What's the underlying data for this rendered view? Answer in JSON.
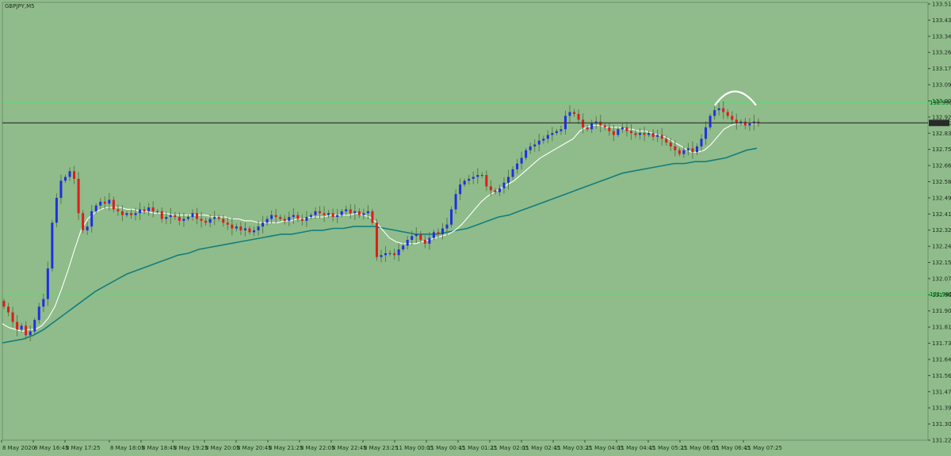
{
  "chart_data": {
    "type": "candlestick",
    "symbol_label": "GBPJPY,M5",
    "colors": {
      "background": "#8fbc8a",
      "bull_candle": "#1f2ee6",
      "bear_candle": "#e01b1b",
      "wick": "#5a7a4a",
      "fast_ma": "#ffffff",
      "slow_ma": "#137e7e",
      "level_line": "#6ecf7a",
      "current_price_line": "#3a3a3a",
      "annotation_arc": "#ffffff"
    },
    "y_axis": {
      "range": [
        131.22,
        133.515
      ],
      "ticks": [
        "133.515",
        "133.430",
        "133.345",
        "133.260",
        "133.175",
        "133.090",
        "133.005",
        "132.920",
        "132.835",
        "132.750",
        "132.665",
        "132.580",
        "132.495",
        "132.410",
        "132.325",
        "132.240",
        "132.155",
        "132.070",
        "131.985",
        "131.900",
        "131.815",
        "131.730",
        "131.645",
        "131.560",
        "131.475",
        "131.390",
        "131.305",
        "131.220"
      ],
      "level_labels": [
        "132.990",
        "131.985"
      ],
      "current_price_label": "132.883"
    },
    "x_axis": {
      "ticks": [
        "8 May 2020",
        "8 May 16:45",
        "8 May 17:25",
        "8 May 18:05",
        "8 May 18:45",
        "8 May 19:25",
        "8 May 20:05",
        "8 May 20:45",
        "8 May 21:25",
        "8 May 22:05",
        "8 May 22:45",
        "8 May 23:25",
        "11 May 00:05",
        "11 May 00:45",
        "11 May 01:25",
        "11 May 02:05",
        "11 May 02:45",
        "11 May 03:25",
        "11 May 04:05",
        "11 May 04:45",
        "11 May 05:25",
        "11 May 06:05",
        "11 May 06:45",
        "11 May 07:25"
      ]
    },
    "levels": [
      132.99,
      131.985
    ],
    "current_price": 132.883,
    "closes": [
      131.92,
      131.89,
      131.84,
      131.8,
      131.82,
      131.77,
      131.79,
      131.85,
      131.92,
      131.96,
      132.12,
      132.36,
      132.49,
      132.58,
      132.6,
      132.63,
      132.59,
      132.41,
      132.32,
      132.34,
      132.42,
      132.45,
      132.47,
      132.46,
      132.48,
      132.43,
      132.42,
      132.4,
      132.41,
      132.4,
      132.41,
      132.43,
      132.42,
      132.44,
      132.42,
      132.42,
      132.38,
      132.39,
      132.4,
      132.39,
      132.37,
      132.38,
      132.39,
      132.41,
      132.38,
      132.37,
      132.36,
      132.38,
      132.39,
      132.38,
      132.36,
      132.35,
      132.33,
      132.34,
      132.32,
      132.33,
      132.31,
      132.32,
      132.34,
      132.36,
      132.38,
      132.4,
      132.39,
      132.38,
      132.37,
      132.39,
      132.4,
      132.38,
      132.37,
      132.39,
      132.4,
      132.42,
      132.41,
      132.4,
      132.41,
      132.39,
      132.4,
      132.42,
      132.43,
      132.41,
      132.42,
      132.4,
      132.41,
      132.42,
      132.36,
      132.18,
      132.19,
      132.2,
      132.2,
      132.19,
      132.22,
      132.24,
      132.27,
      132.29,
      132.3,
      132.27,
      132.25,
      132.28,
      132.31,
      132.3,
      132.33,
      132.35,
      132.43,
      132.51,
      132.56,
      132.58,
      132.59,
      132.6,
      132.61,
      132.61,
      132.55,
      132.53,
      132.52,
      132.54,
      132.57,
      132.6,
      132.64,
      132.67,
      132.7,
      132.74,
      132.76,
      132.77,
      132.79,
      132.8,
      132.82,
      132.83,
      132.84,
      132.85,
      132.92,
      132.94,
      132.93,
      132.9,
      132.86,
      132.85,
      132.88,
      132.89,
      132.87,
      132.86,
      132.84,
      132.82,
      132.85,
      132.86,
      132.84,
      132.83,
      132.82,
      132.83,
      132.82,
      132.83,
      132.81,
      132.82,
      132.8,
      132.78,
      132.76,
      132.74,
      132.72,
      132.74,
      132.75,
      132.73,
      132.76,
      132.8,
      132.86,
      132.92,
      132.95,
      132.96,
      132.94,
      132.92,
      132.9,
      132.88,
      132.89,
      132.87,
      132.88,
      132.89,
      132.88
    ],
    "fast_ma": [
      131.83,
      131.81,
      131.8,
      131.79,
      131.8,
      131.8,
      131.82,
      131.86,
      131.92,
      132.01,
      132.11,
      132.22,
      132.32,
      132.38,
      132.41,
      132.43,
      132.44,
      132.44,
      132.44,
      132.43,
      132.43,
      132.42,
      132.42,
      132.41,
      132.41,
      132.41,
      132.4,
      132.4,
      132.4,
      132.4,
      132.4,
      132.4,
      132.39,
      132.39,
      132.39,
      132.38,
      132.38,
      132.37,
      132.37,
      132.36,
      132.36,
      132.36,
      132.36,
      132.37,
      132.37,
      132.38,
      132.38,
      132.39,
      132.39,
      132.39,
      132.4,
      132.4,
      132.4,
      132.4,
      132.41,
      132.4,
      132.39,
      132.36,
      132.32,
      132.28,
      132.26,
      132.25,
      132.25,
      132.25,
      132.26,
      132.27,
      132.28,
      132.29,
      132.3,
      132.32,
      132.35,
      132.39,
      132.43,
      132.47,
      132.5,
      132.52,
      132.54,
      132.56,
      132.58,
      132.61,
      132.64,
      132.67,
      132.7,
      132.72,
      132.74,
      132.76,
      132.78,
      132.8,
      132.84,
      132.86,
      132.87,
      132.87,
      132.86,
      132.86,
      132.86,
      132.85,
      132.85,
      132.84,
      132.84,
      132.83,
      132.82,
      132.81,
      132.79,
      132.77,
      132.75,
      132.73,
      132.73,
      132.74,
      132.77,
      132.81,
      132.85,
      132.87,
      132.88,
      132.88,
      132.88,
      132.88
    ],
    "slow_ma": [
      131.73,
      131.74,
      131.75,
      131.77,
      131.8,
      131.84,
      131.88,
      131.92,
      131.96,
      132.0,
      132.03,
      132.06,
      132.09,
      132.11,
      132.13,
      132.15,
      132.17,
      132.19,
      132.2,
      132.22,
      132.23,
      132.24,
      132.25,
      132.26,
      132.27,
      132.28,
      132.29,
      132.3,
      132.3,
      132.31,
      132.32,
      132.32,
      132.33,
      132.33,
      132.34,
      132.34,
      132.34,
      132.33,
      132.32,
      132.31,
      132.3,
      132.3,
      132.3,
      132.31,
      132.32,
      132.33,
      132.35,
      132.37,
      132.39,
      132.4,
      132.42,
      132.44,
      132.46,
      132.48,
      132.5,
      132.52,
      132.54,
      132.56,
      132.58,
      132.6,
      132.62,
      132.63,
      132.64,
      132.65,
      132.66,
      132.67,
      132.67,
      132.68,
      132.68,
      132.69,
      132.7,
      132.72,
      132.74,
      132.75
    ]
  }
}
